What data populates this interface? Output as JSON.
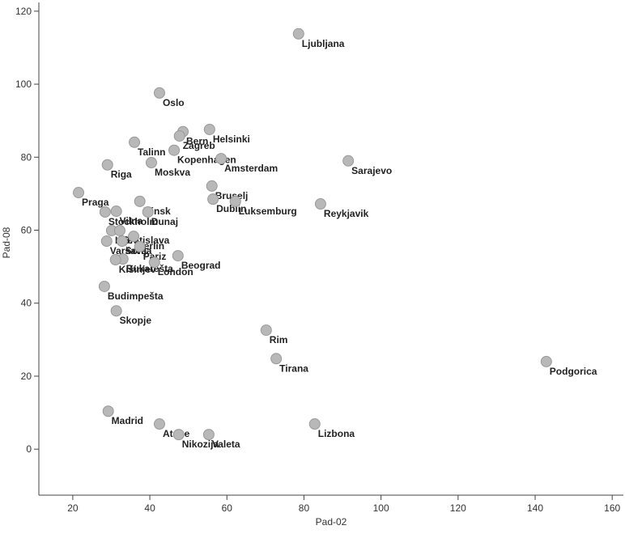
{
  "chart_data": {
    "type": "scatter",
    "x_label": "Pad-02",
    "y_label": "Pad-08",
    "xlim": [
      11.2,
      162.9
    ],
    "ylim": [
      -12.6,
      122.4
    ],
    "xticks": [
      20,
      40,
      60,
      80,
      100,
      120,
      140,
      160
    ],
    "yticks": [
      0,
      20,
      40,
      60,
      80,
      100,
      120
    ],
    "color": "#b8b8b8",
    "point_labels": [
      "Ljubljana",
      "Oslo",
      "Helsinki",
      "Bern",
      "Zagreb",
      "Kopenhagen",
      "Talinn",
      "Amsterdam",
      "Riga",
      "Moskva",
      "Sarajevo",
      "Praga",
      "Bruselj",
      "Dublin",
      "Luksemburg",
      "Reykjavik",
      "Minsk",
      "Stockholm",
      "Vilna",
      "Dunaj",
      "Kijev",
      "Varšava",
      "Bratislava",
      "Berlin",
      "Sofija",
      "Pariz",
      "Bukarešta",
      "Kišinjev",
      "Beograd",
      "London",
      "Budimpešta",
      "Skopje",
      "Rim",
      "Tirana",
      "Podgorica",
      "Madrid",
      "Atene",
      "Nikozija",
      "Valeta",
      "Lizbona"
    ],
    "x": [
      78.6,
      42.5,
      55.5,
      48.6,
      47.7,
      46.3,
      36.0,
      58.5,
      29.0,
      40.4,
      91.5,
      21.5,
      56.1,
      56.4,
      62.2,
      84.3,
      37.4,
      28.4,
      31.3,
      39.5,
      30.1,
      28.8,
      32.2,
      35.8,
      32.8,
      37.4,
      33.0,
      31.1,
      47.3,
      41.2,
      28.2,
      31.3,
      70.2,
      72.8,
      142.9,
      29.2,
      42.5,
      47.5,
      55.3,
      82.8
    ],
    "values": [
      113.8,
      97.6,
      87.6,
      87.0,
      85.8,
      81.9,
      84.1,
      79.6,
      77.9,
      78.5,
      79.0,
      70.3,
      72.1,
      68.5,
      67.9,
      67.2,
      67.9,
      65.0,
      65.2,
      65.0,
      59.9,
      57.0,
      59.9,
      58.3,
      57.0,
      55.5,
      52.1,
      51.9,
      53.0,
      51.2,
      44.6,
      37.9,
      32.6,
      24.8,
      24.0,
      10.4,
      6.9,
      4.0,
      4.0,
      6.9
    ]
  }
}
